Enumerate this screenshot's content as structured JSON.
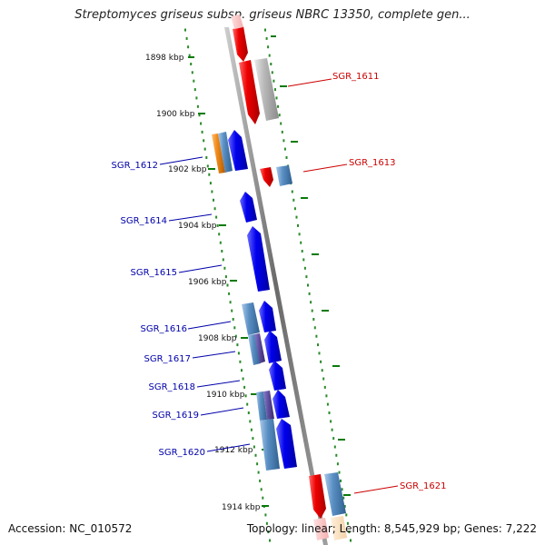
{
  "title": "Streptomyces griseus subsp. griseus NBRC 13350, complete gen...",
  "accession": "Accession: NC_010572",
  "topology": "Topology: linear; Length: 8,545,929 bp; Genes: 7,222",
  "colors": {
    "forward_gene": "#ee0000",
    "reverse_gene": "#0000ee",
    "cds_light_blue": "#5a8fc4",
    "gray_gene": "#b0b0b0",
    "orange_gene": "#f08a1a",
    "track_dots": "#2a8a2a",
    "label_red": "#cc0000",
    "label_blue": "#0000aa"
  },
  "ruler": [
    {
      "label": "1898 kbp"
    },
    {
      "label": "1900 kbp"
    },
    {
      "label": "1902 kbp"
    },
    {
      "label": "1904 kbp"
    },
    {
      "label": "1906 kbp"
    },
    {
      "label": "1908 kbp"
    },
    {
      "label": "1910 kbp"
    },
    {
      "label": "1912 kbp"
    },
    {
      "label": "1914 kbp"
    }
  ],
  "genes_right": [
    {
      "name": "SGR_1611"
    },
    {
      "name": "SGR_1613"
    },
    {
      "name": "SGR_1621"
    }
  ],
  "genes_left": [
    {
      "name": "SGR_1612"
    },
    {
      "name": "SGR_1614"
    },
    {
      "name": "SGR_1615"
    },
    {
      "name": "SGR_1616"
    },
    {
      "name": "SGR_1617"
    },
    {
      "name": "SGR_1618"
    },
    {
      "name": "SGR_1619"
    },
    {
      "name": "SGR_1620"
    }
  ]
}
